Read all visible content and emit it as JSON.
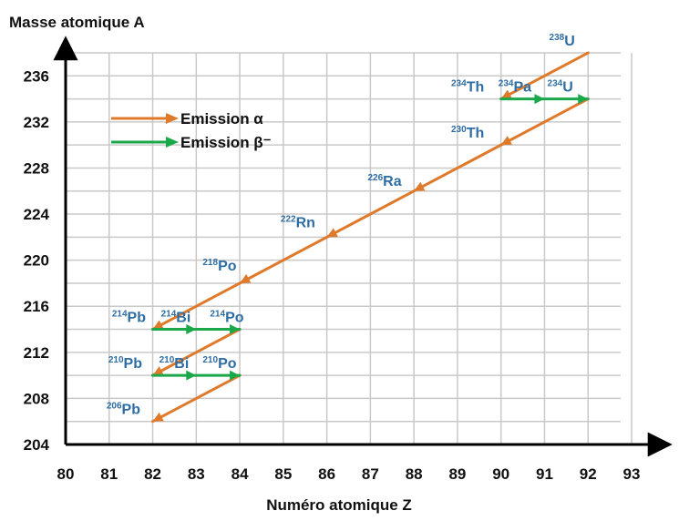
{
  "colors": {
    "alpha": "#e07a2b",
    "beta": "#1aa84a",
    "label": "#2e6da4",
    "grid": "#c9c9c9",
    "axis": "#000000"
  },
  "chart_data": {
    "type": "line",
    "title": "",
    "xlabel": "Numéro atomique Z",
    "ylabel": "Masse atomique A",
    "xlim": [
      80,
      93
    ],
    "ylim": [
      204,
      238
    ],
    "x_ticks": [
      "80",
      "81",
      "82",
      "83",
      "84",
      "85",
      "86",
      "87",
      "88",
      "89",
      "90",
      "91",
      "92",
      "93"
    ],
    "y_ticks": [
      "204",
      "208",
      "212",
      "216",
      "220",
      "224",
      "228",
      "232",
      "236"
    ],
    "grid": true,
    "legend_position": "top-left",
    "legend": [
      {
        "name": "Emission α",
        "color": "#e07a2b"
      },
      {
        "name": "Emission β⁻",
        "color": "#1aa84a"
      }
    ],
    "nuclides": [
      {
        "mass": "238",
        "symbol": "U",
        "z": 92,
        "a": 238
      },
      {
        "mass": "234",
        "symbol": "Th",
        "z": 90,
        "a": 234
      },
      {
        "mass": "234",
        "symbol": "Pa",
        "z": 91,
        "a": 234
      },
      {
        "mass": "234",
        "symbol": "U",
        "z": 92,
        "a": 234
      },
      {
        "mass": "230",
        "symbol": "Th",
        "z": 90,
        "a": 230
      },
      {
        "mass": "226",
        "symbol": "Ra",
        "z": 88,
        "a": 226
      },
      {
        "mass": "222",
        "symbol": "Rn",
        "z": 86,
        "a": 222
      },
      {
        "mass": "218",
        "symbol": "Po",
        "z": 84,
        "a": 218
      },
      {
        "mass": "214",
        "symbol": "Pb",
        "z": 82,
        "a": 214
      },
      {
        "mass": "214",
        "symbol": "Bi",
        "z": 83,
        "a": 214
      },
      {
        "mass": "214",
        "symbol": "Po",
        "z": 84,
        "a": 214
      },
      {
        "mass": "210",
        "symbol": "Pb",
        "z": 82,
        "a": 210
      },
      {
        "mass": "210",
        "symbol": "Bi",
        "z": 83,
        "a": 210
      },
      {
        "mass": "210",
        "symbol": "Po",
        "z": 84,
        "a": 210
      },
      {
        "mass": "206",
        "symbol": "Pb",
        "z": 82,
        "a": 206
      }
    ],
    "series": [
      {
        "name": "Emission α",
        "segments": [
          {
            "from": [
              92,
              238
            ],
            "to": [
              90,
              234
            ]
          },
          {
            "from": [
              92,
              234
            ],
            "to": [
              82,
              214
            ]
          },
          {
            "from": [
              84,
              214
            ],
            "to": [
              82,
              210
            ]
          },
          {
            "from": [
              84,
              210
            ],
            "to": [
              82,
              206
            ]
          }
        ]
      },
      {
        "name": "Emission β⁻",
        "segments": [
          {
            "from": [
              90,
              234
            ],
            "to": [
              92,
              234
            ]
          },
          {
            "from": [
              82,
              214
            ],
            "to": [
              84,
              214
            ]
          },
          {
            "from": [
              82,
              210
            ],
            "to": [
              84,
              210
            ]
          }
        ]
      }
    ]
  }
}
